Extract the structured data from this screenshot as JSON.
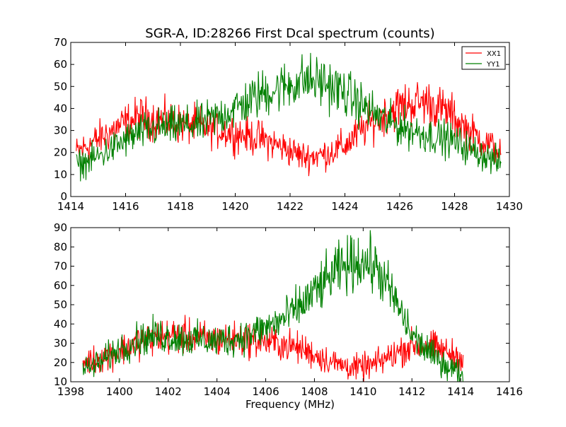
{
  "chart_data": [
    {
      "type": "line",
      "title": "SGR-A, ID:28266 First Dcal spectrum (counts)",
      "xlabel": "",
      "ylabel": "",
      "xlim": [
        1414,
        1430
      ],
      "ylim": [
        0,
        70
      ],
      "xticks": [
        1414,
        1416,
        1418,
        1420,
        1422,
        1424,
        1426,
        1428,
        1430
      ],
      "yticks": [
        0,
        10,
        20,
        30,
        40,
        50,
        60,
        70
      ],
      "grid": false,
      "legend": {
        "placement": "top-right",
        "entries": [
          "XX1",
          "YY1"
        ]
      },
      "series": [
        {
          "name": "XX1",
          "color": "#ff0000",
          "x": [
            1414.2,
            1415.0,
            1415.8,
            1416.5,
            1417.2,
            1418.0,
            1418.8,
            1419.5,
            1420.3,
            1421.0,
            1421.8,
            1422.5,
            1423.2,
            1424.0,
            1424.8,
            1425.5,
            1426.2,
            1427.0,
            1427.8,
            1428.5,
            1429.2,
            1429.7
          ],
          "y": [
            20,
            26,
            32,
            36,
            35,
            33,
            32,
            30,
            28,
            26,
            22,
            18,
            19,
            23,
            32,
            38,
            42,
            43,
            38,
            30,
            24,
            20
          ]
        },
        {
          "name": "YY1",
          "color": "#008000",
          "x": [
            1414.2,
            1415.0,
            1415.8,
            1416.5,
            1417.2,
            1418.0,
            1418.8,
            1419.5,
            1420.3,
            1421.0,
            1421.8,
            1422.5,
            1423.2,
            1424.0,
            1424.8,
            1425.5,
            1426.2,
            1427.0,
            1427.8,
            1428.5,
            1429.2,
            1429.7
          ],
          "y": [
            14,
            18,
            24,
            29,
            31,
            32,
            33,
            37,
            42,
            47,
            50,
            53,
            52,
            47,
            40,
            34,
            31,
            28,
            26,
            22,
            18,
            15
          ]
        }
      ]
    },
    {
      "type": "line",
      "title": "",
      "xlabel": "Frequency (MHz)",
      "ylabel": "",
      "xlim": [
        1398,
        1416
      ],
      "ylim": [
        10,
        90
      ],
      "xticks": [
        1398,
        1400,
        1402,
        1404,
        1406,
        1408,
        1410,
        1412,
        1414,
        1416
      ],
      "yticks": [
        10,
        20,
        30,
        40,
        50,
        60,
        70,
        80,
        90
      ],
      "grid": false,
      "series": [
        {
          "color": "#ff0000",
          "x": [
            1398.5,
            1399.2,
            1400.0,
            1400.8,
            1401.5,
            1402.2,
            1403.0,
            1403.8,
            1404.5,
            1405.2,
            1406.0,
            1406.8,
            1407.5,
            1408.2,
            1409.0,
            1409.8,
            1410.5,
            1411.2,
            1412.0,
            1412.8,
            1413.5,
            1414.1
          ],
          "y": [
            20,
            22,
            26,
            31,
            33,
            34,
            33,
            32,
            32,
            32,
            31,
            29,
            27,
            23,
            19,
            17,
            19,
            24,
            29,
            28,
            25,
            22
          ]
        },
        {
          "color": "#008000",
          "x": [
            1398.5,
            1399.2,
            1400.0,
            1400.8,
            1401.5,
            1402.2,
            1403.0,
            1403.8,
            1404.5,
            1405.2,
            1406.0,
            1406.8,
            1407.5,
            1408.2,
            1409.0,
            1409.8,
            1410.5,
            1411.2,
            1412.0,
            1412.8,
            1413.5,
            1414.1
          ],
          "y": [
            16,
            20,
            27,
            32,
            34,
            33,
            32,
            31,
            32,
            34,
            38,
            43,
            50,
            59,
            68,
            73,
            70,
            55,
            34,
            24,
            18,
            14
          ]
        }
      ]
    }
  ]
}
